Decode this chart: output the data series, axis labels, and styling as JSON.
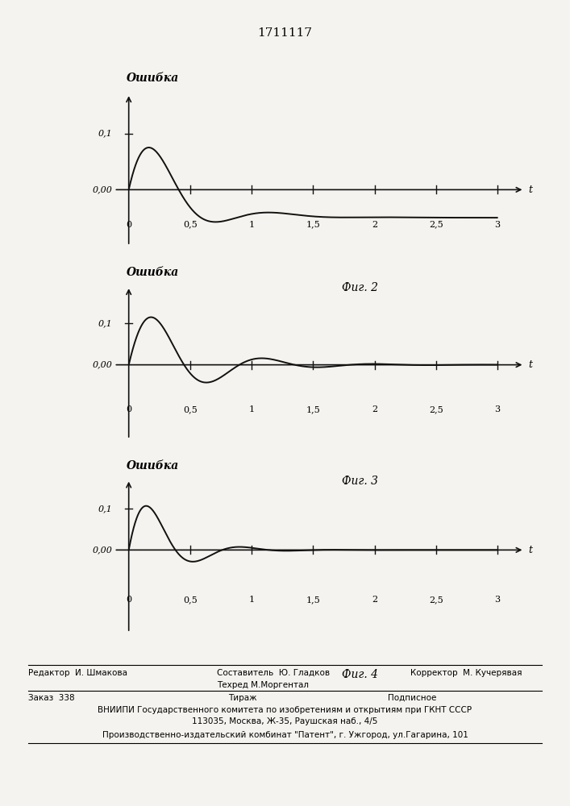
{
  "patent_number": "1711117",
  "ylabel_text": "Ошибка",
  "xlabel_text": "t",
  "fig_labels": [
    "Фиг. 2",
    "Фиг. 3",
    "Фиг. 4"
  ],
  "footer_editor": "Редактор  И. Шмакова",
  "footer_composer": "Составитель  Ю. Гладков",
  "footer_techred": "Техред М.Моргентал",
  "footer_corrector": "Корректор  М. Кучерявая",
  "footer_order": "Заказ  338",
  "footer_print": "Тираж",
  "footer_sub": "Подписное",
  "footer_vniippi": "ВНИИПИ Государственного комитета по изобретениям и открытиям при ГКНТ СССР",
  "footer_address": "113035, Москва, Ж-35, Раушская наб., 4/5",
  "footer_production": "Производственно-издательский комбинат \"Патент\", г. Ужгород, ул.Гагарина, 101",
  "bg_color": "#f5f3ef",
  "curve_color": "#111111",
  "axis_color": "#111111"
}
